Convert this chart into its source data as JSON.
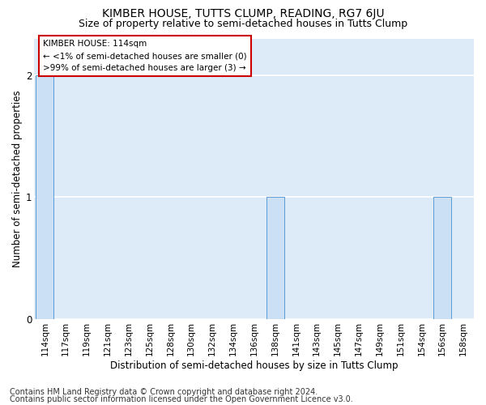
{
  "title1": "KIMBER HOUSE, TUTTS CLUMP, READING, RG7 6JU",
  "title2": "Size of property relative to semi-detached houses in Tutts Clump",
  "xlabel": "Distribution of semi-detached houses by size in Tutts Clump",
  "ylabel": "Number of semi-detached properties",
  "footnote1": "Contains HM Land Registry data © Crown copyright and database right 2024.",
  "footnote2": "Contains public sector information licensed under the Open Government Licence v3.0.",
  "categories": [
    "114sqm",
    "117sqm",
    "119sqm",
    "121sqm",
    "123sqm",
    "125sqm",
    "128sqm",
    "130sqm",
    "132sqm",
    "134sqm",
    "136sqm",
    "138sqm",
    "141sqm",
    "143sqm",
    "145sqm",
    "147sqm",
    "149sqm",
    "151sqm",
    "154sqm",
    "156sqm",
    "158sqm"
  ],
  "values": [
    2,
    0,
    0,
    0,
    0,
    0,
    0,
    0,
    0,
    0,
    0,
    1,
    0,
    0,
    0,
    0,
    0,
    0,
    0,
    1,
    0
  ],
  "bar_color": "#cce0f5",
  "bar_edge_color": "#5b9bd5",
  "annotation_title": "KIMBER HOUSE: 114sqm",
  "annotation_line1": "← <1% of semi-detached houses are smaller (0)",
  "annotation_line2": ">99% of semi-detached houses are larger (3) →",
  "annotation_box_color": "#ffffff",
  "annotation_box_edge": "#cc0000",
  "ylim": [
    0,
    2.3
  ],
  "yticks": [
    0,
    1,
    2
  ],
  "bg_color": "#ddeaf7",
  "grid_color": "#ffffff",
  "title1_fontsize": 10,
  "title2_fontsize": 9,
  "xlabel_fontsize": 8.5,
  "ylabel_fontsize": 8.5,
  "tick_fontsize": 7.5,
  "annotation_fontsize": 7.5,
  "footnote_fontsize": 7.0
}
